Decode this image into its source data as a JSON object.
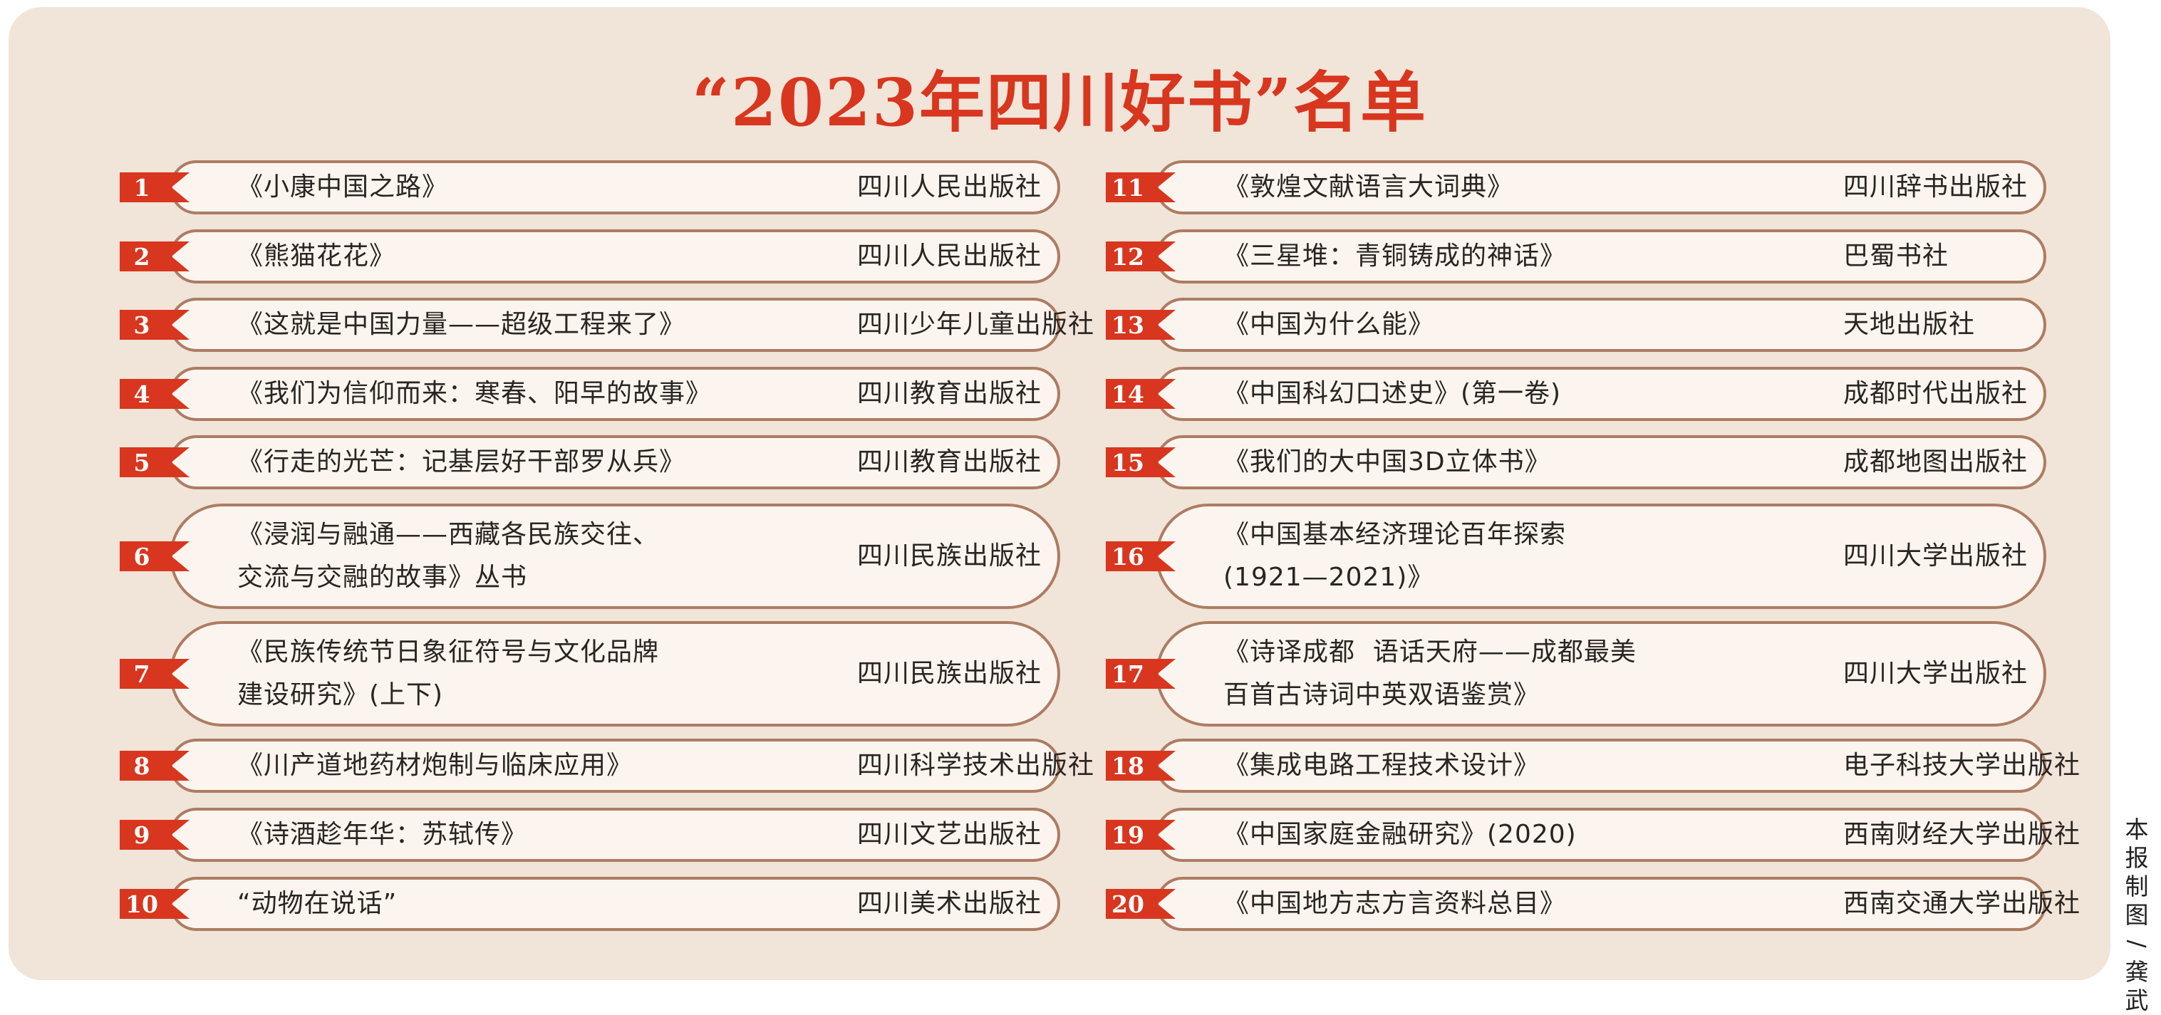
{
  "title": "“2023年四川好书”名单",
  "credit": "本报制图/龚武",
  "left_items": [
    {
      "num": "1",
      "book": "《小康中国之路》",
      "publisher": "四川人民出版社"
    },
    {
      "num": "2",
      "book": "《熊猫花花》",
      "publisher": "四川人民出版社"
    },
    {
      "num": "3",
      "book": "《这就是中国力量——超级工程来了》",
      "publisher": "四川少年儿童出版社"
    },
    {
      "num": "4",
      "book": "《我们为信仰而来：寒春、阳早的故事》",
      "publisher": "四川教育出版社"
    },
    {
      "num": "5",
      "book": "《行走的光芒：记基层好干部罗从兵》",
      "publisher": "四川教育出版社"
    },
    {
      "num": "6",
      "book": "《浸润与融通——西藏各民族交往、\n交流与交融的故事》丛书",
      "publisher": "四川民族出版社"
    },
    {
      "num": "7",
      "book": "《民族传统节日象征符号与文化品牌\n建设研究》(上下)",
      "publisher": "四川民族出版社"
    },
    {
      "num": "8",
      "book": "《川产道地药材炮制与临床应用》",
      "publisher": "四川科学技术出版社"
    },
    {
      "num": "9",
      "book": "《诗酒趁年华：苏轼传》",
      "publisher": "四川文艺出版社"
    },
    {
      "num": "10",
      "book": "“动物在说话”",
      "publisher": "四川美术出版社"
    }
  ],
  "right_items": [
    {
      "num": "11",
      "book": "《敦煌文献语言大词典》",
      "publisher": "四川辞书出版社"
    },
    {
      "num": "12",
      "book": "《三星堆：青铜铸成的神话》",
      "publisher": "巴蜀书社"
    },
    {
      "num": "13",
      "book": "《中国为什么能》",
      "publisher": "天地出版社"
    },
    {
      "num": "14",
      "book": "《中国科幻口述史》(第一卷)",
      "publisher": "成都时代出版社"
    },
    {
      "num": "15",
      "book": "《我们的大中国3D立体书》",
      "publisher": "成都地图出版社"
    },
    {
      "num": "16",
      "book": "《中国基本经济理论百年探索\n(1921—2021)》",
      "publisher": "四川大学出版社"
    },
    {
      "num": "17",
      "book": "《诗译成都  语话天府——成都最美\n百首古诗词中英双语鉴赏》",
      "publisher": "四川大学出版社"
    },
    {
      "num": "18",
      "book": "《集成电路工程技术设计》",
      "publisher": "电子科技大学出版社"
    },
    {
      "num": "19",
      "book": "《中国家庭金融研究》(2020)",
      "publisher": "西南财经大学出版社"
    },
    {
      "num": "20",
      "book": "《中国地方志方言资料总目》",
      "publisher": "西南交通大学出版社"
    }
  ],
  "colors": {
    "background": "#f1e4d8",
    "title": "#d8361e",
    "ribbon": "#d8361e",
    "pill_border": "#ad7c63",
    "pill_fill": "#fcf5ef",
    "text": "#2a2522"
  }
}
